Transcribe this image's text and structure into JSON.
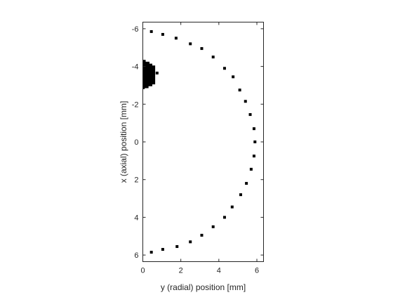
{
  "chart_data": {
    "type": "scatter",
    "xlabel": "y (radial) position [mm]",
    "ylabel": "x (axial) position [mm]",
    "xlim": [
      0,
      6.35
    ],
    "ylim": [
      -6.35,
      6.35
    ],
    "y_axis_reversed": true,
    "grid": false,
    "x_ticks": [
      0,
      2,
      4,
      6
    ],
    "y_ticks": [
      -6,
      -4,
      -2,
      0,
      2,
      4,
      6
    ],
    "x_tick_labels": [
      "0",
      "2",
      "4",
      "6"
    ],
    "y_tick_labels": [
      "-6",
      "-4",
      "-2",
      "0",
      "2",
      "4",
      "6"
    ],
    "marker_color": "#000000",
    "series": [
      {
        "points": [
          [
            0.45,
            -5.85
          ],
          [
            1.05,
            -5.7
          ],
          [
            1.75,
            -5.5
          ],
          [
            2.5,
            -5.2
          ],
          [
            3.1,
            -4.95
          ],
          [
            3.7,
            -4.5
          ],
          [
            4.3,
            -3.9
          ],
          [
            4.75,
            -3.45
          ],
          [
            5.1,
            -2.75
          ],
          [
            5.4,
            -2.15
          ],
          [
            5.65,
            -1.45
          ],
          [
            5.85,
            -0.7
          ],
          [
            5.9,
            0.0
          ],
          [
            5.85,
            0.75
          ],
          [
            5.7,
            1.45
          ],
          [
            5.45,
            2.2
          ],
          [
            5.15,
            2.8
          ],
          [
            4.7,
            3.45
          ],
          [
            4.3,
            4.0
          ],
          [
            3.7,
            4.5
          ],
          [
            3.1,
            4.95
          ],
          [
            2.5,
            5.3
          ],
          [
            1.8,
            5.55
          ],
          [
            1.05,
            5.7
          ],
          [
            0.45,
            5.85
          ],
          [
            0.75,
            -3.65
          ]
        ]
      }
    ],
    "filled_regions": [
      {
        "color": "#000000",
        "outline": [
          [
            0,
            -4.35
          ],
          [
            0.15,
            -4.35
          ],
          [
            0.15,
            -4.25
          ],
          [
            0.35,
            -4.25
          ],
          [
            0.35,
            -4.15
          ],
          [
            0.5,
            -4.15
          ],
          [
            0.5,
            -4.05
          ],
          [
            0.65,
            -4.05
          ],
          [
            0.65,
            -3.05
          ],
          [
            0.5,
            -3.05
          ],
          [
            0.5,
            -2.95
          ],
          [
            0.3,
            -2.95
          ],
          [
            0.3,
            -2.85
          ],
          [
            0.1,
            -2.85
          ],
          [
            0.1,
            -2.8
          ],
          [
            0,
            -2.8
          ]
        ]
      }
    ]
  }
}
